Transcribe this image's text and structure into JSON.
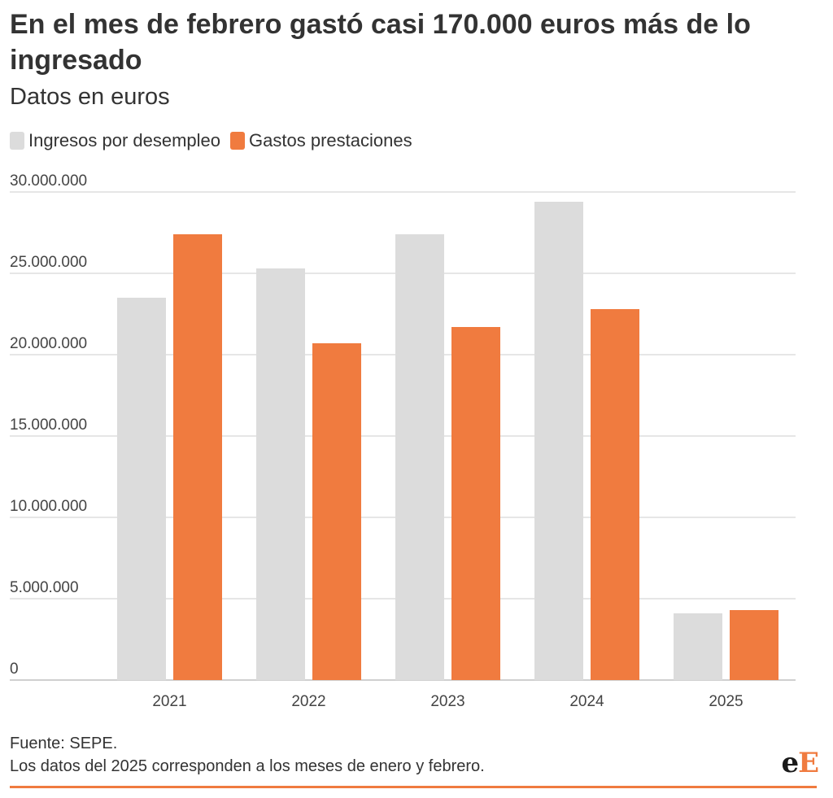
{
  "header": {
    "title": "En el mes de febrero gastó casi 170.000 euros más de lo ingresado",
    "subtitle": "Datos en euros"
  },
  "legend": [
    {
      "label": "Ingresos por desempleo",
      "color": "#dcdcdc"
    },
    {
      "label": "Gastos prestaciones",
      "color": "#f07b3f"
    }
  ],
  "chart_data": {
    "type": "bar",
    "categories": [
      "2021",
      "2022",
      "2023",
      "2024",
      "2025"
    ],
    "series": [
      {
        "name": "Ingresos por desempleo",
        "color": "#dcdcdc",
        "values": [
          23500000,
          25300000,
          27400000,
          29400000,
          4100000
        ]
      },
      {
        "name": "Gastos prestaciones",
        "color": "#f07b3f",
        "values": [
          27400000,
          20700000,
          21700000,
          22800000,
          4300000
        ]
      }
    ],
    "ylim": [
      0,
      30000000
    ],
    "yticks": [
      0,
      5000000,
      10000000,
      15000000,
      20000000,
      25000000,
      30000000
    ],
    "ytick_labels": [
      "0",
      "5.000.000",
      "10.000.000",
      "15.000.000",
      "20.000.000",
      "25.000.000",
      "30.000.000"
    ],
    "xlabel": "",
    "ylabel": "",
    "grid": true,
    "legend_position": "top-left"
  },
  "footer": {
    "source": "Fuente: SEPE.",
    "note": "Los datos del 2025 corresponden a los meses de enero y febrero."
  },
  "logo": {
    "text_e": "e",
    "text_E": "E"
  }
}
